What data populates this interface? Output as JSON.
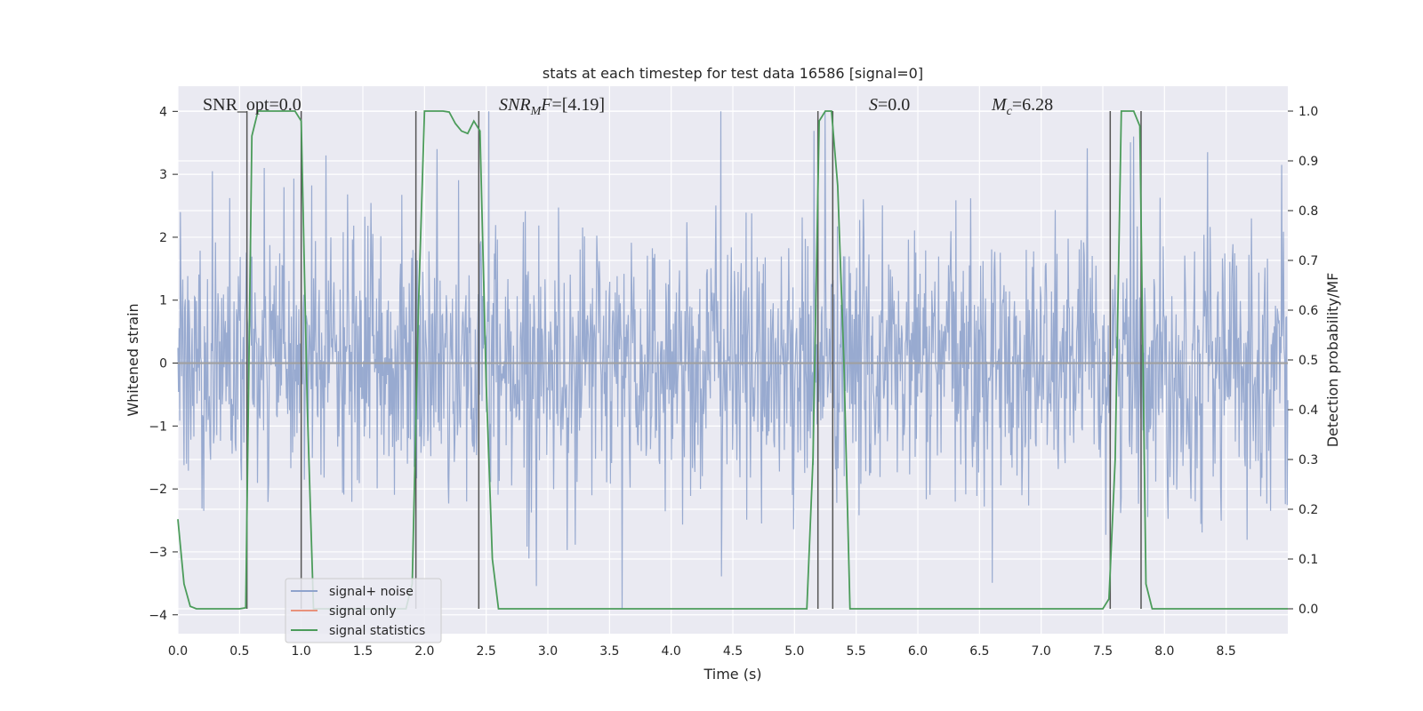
{
  "chart_data": {
    "type": "line",
    "title": "stats at each timestep for test data 16586 [signal=0]",
    "xlabel": "Time (s)",
    "ylabel": "Whitened strain",
    "ylabel_right": "Detection probability/MF",
    "xlim": [
      0,
      9.0
    ],
    "ylim": [
      -4.3,
      4.4
    ],
    "ylim_right": [
      -0.05,
      1.05
    ],
    "xticks": [
      "0.0",
      "0.5",
      "1.0",
      "1.5",
      "2.0",
      "2.5",
      "3.0",
      "3.5",
      "4.0",
      "4.5",
      "5.0",
      "5.5",
      "6.0",
      "6.5",
      "7.0",
      "7.5",
      "8.0",
      "8.5"
    ],
    "yticks": [
      "4",
      "3",
      "2",
      "1",
      "0",
      "−1",
      "−2",
      "−3",
      "−4"
    ],
    "yticks_right": [
      "1.0",
      "0.9",
      "0.8",
      "0.7",
      "0.6",
      "0.5",
      "0.4",
      "0.3",
      "0.2",
      "0.1",
      "0.0"
    ],
    "grid": true,
    "legend_position": "lower-left",
    "annotations": {
      "snr_opt": "SNR_opt=0.0",
      "snr_mf": "[4.19]",
      "s_val": "=0.0",
      "mc_val": "=6.28"
    },
    "series": [
      {
        "name": "signal+ noise",
        "color": "#8fa3cc",
        "style": "dense noise trace",
        "noise_std": 1.05,
        "n_samples": 1800,
        "peak_points": [
          {
            "t": 0.02,
            "v": 2.4
          },
          {
            "t": 0.28,
            "v": 3.05
          },
          {
            "t": 0.7,
            "v": 3.1
          },
          {
            "t": 1.2,
            "v": 3.3
          },
          {
            "t": 2.1,
            "v": 3.4
          },
          {
            "t": 2.52,
            "v": 4.0
          },
          {
            "t": 3.6,
            "v": -3.9
          },
          {
            "t": 4.4,
            "v": 4.0
          },
          {
            "t": 5.25,
            "v": 4.0
          },
          {
            "t": 7.75,
            "v": 3.6
          },
          {
            "t": 8.35,
            "v": 3.35
          },
          {
            "t": 8.95,
            "v": 3.15
          }
        ]
      },
      {
        "name": "signal only",
        "color": "#e8927c",
        "values_constant": 0.0
      },
      {
        "name": "signal statistics",
        "color": "#4c9c5b",
        "axis": "right",
        "x": [
          0.0,
          0.05,
          0.1,
          0.15,
          0.2,
          0.3,
          0.4,
          0.5,
          0.55,
          0.6,
          0.65,
          0.7,
          0.8,
          0.9,
          0.95,
          1.0,
          1.05,
          1.1,
          1.5,
          1.85,
          1.9,
          1.95,
          2.0,
          2.05,
          2.1,
          2.15,
          2.2,
          2.25,
          2.3,
          2.35,
          2.4,
          2.45,
          2.5,
          2.55,
          2.6,
          3.0,
          4.0,
          5.0,
          5.1,
          5.15,
          5.2,
          5.25,
          5.3,
          5.35,
          5.4,
          5.45,
          5.5,
          6.0,
          7.0,
          7.5,
          7.55,
          7.6,
          7.65,
          7.7,
          7.75,
          7.8,
          7.85,
          7.9,
          7.95,
          8.0,
          8.5,
          9.0
        ],
        "y": [
          0.18,
          0.05,
          0.005,
          0.0,
          0.0,
          0.0,
          0.0,
          0.0,
          0.002,
          0.95,
          1.0,
          1.0,
          1.0,
          1.0,
          1.0,
          0.98,
          0.4,
          0.0,
          0.0,
          0.0,
          0.05,
          0.6,
          1.0,
          1.0,
          1.0,
          1.0,
          0.998,
          0.975,
          0.96,
          0.955,
          0.98,
          0.96,
          0.45,
          0.1,
          0.0,
          0.0,
          0.0,
          0.0,
          0.0,
          0.3,
          0.98,
          1.0,
          1.0,
          0.85,
          0.5,
          0.0,
          0.0,
          0.0,
          0.0,
          0.0,
          0.02,
          0.3,
          1.0,
          1.0,
          1.0,
          0.97,
          0.05,
          0.0,
          0.0,
          0.0,
          0.0,
          0.0
        ]
      }
    ],
    "vertical_markers": [
      0.56,
      1.0,
      1.93,
      2.44,
      5.19,
      5.31,
      7.56,
      7.81
    ]
  }
}
